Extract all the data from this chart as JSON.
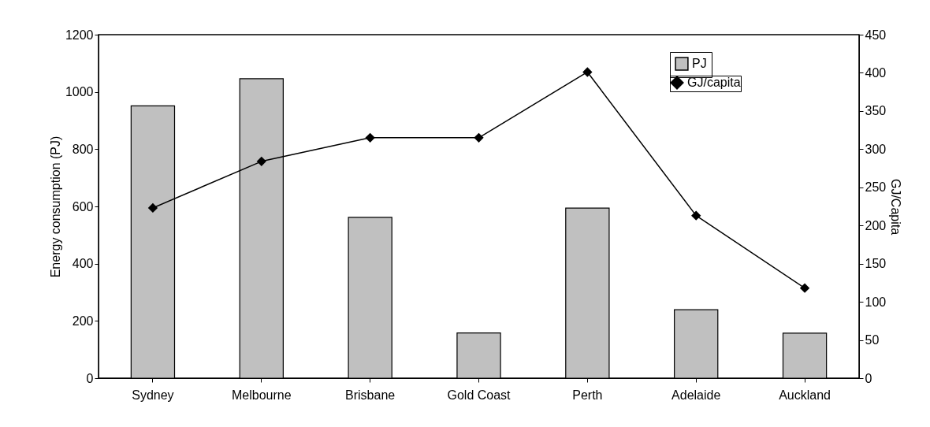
{
  "chart_data": {
    "type": "bar",
    "ylabel": "Energy consumption (PJ)",
    "y2label": "GJ/Capita",
    "categories": [
      "Sydney",
      "Melbourne",
      "Brisbane",
      "Gold Coast",
      "Perth",
      "Adelaide",
      "Auckland"
    ],
    "series": [
      {
        "name": "PJ",
        "color": "#c0c0c0",
        "values": [
          951,
          1046,
          562,
          158,
          594,
          239,
          157
        ]
      },
      {
        "name": "GJ/capita",
        "type": "line",
        "axis": "y2",
        "color": "#000000",
        "marker": "diamond",
        "values": [
          223,
          284,
          315,
          315,
          401,
          213,
          118
        ]
      }
    ],
    "ylim": [
      0,
      1200
    ],
    "yticks": [
      0,
      200,
      400,
      600,
      800,
      1000,
      1200
    ],
    "y2lim": [
      0,
      450
    ],
    "y2ticks": [
      0,
      50,
      100,
      150,
      200,
      250,
      300,
      350,
      400,
      450
    ],
    "grid": false,
    "legend": "top right"
  }
}
